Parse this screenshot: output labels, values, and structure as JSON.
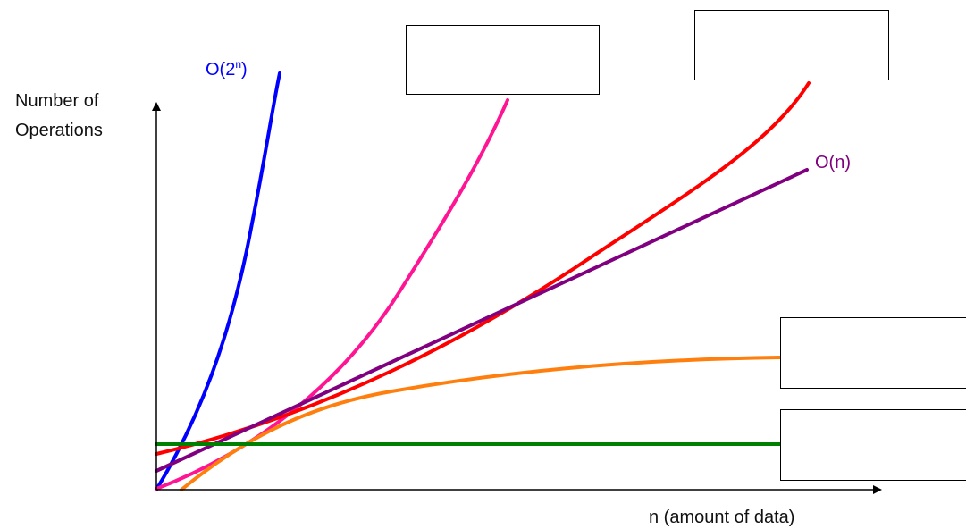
{
  "chart_data": {
    "type": "line",
    "title": "",
    "ylabel": [
      "Number of",
      "Operations"
    ],
    "xlabel": "n  (amount of data)",
    "grid": false,
    "legend": "none; labels placed next to curves",
    "series": [
      {
        "name": "O(2ⁿ)",
        "label_main": "O(2",
        "label_sup": "n",
        "label_close": ")",
        "color": "#0000ff",
        "labeled": true
      },
      {
        "name": "",
        "color": "#ff1493",
        "labeled": false,
        "box": "top-middle"
      },
      {
        "name": "",
        "color": "#ff0000",
        "labeled": false,
        "box": "top-right"
      },
      {
        "name": "O(n)",
        "label_main": "O(n)",
        "label_sup": "",
        "label_close": "",
        "color": "#800080",
        "labeled": true
      },
      {
        "name": "",
        "color": "#ff7f0e",
        "labeled": false,
        "box": "right-upper"
      },
      {
        "name": "",
        "color": "#008000",
        "labeled": false,
        "box": "right-lower"
      }
    ],
    "answer_boxes": [
      "",
      "",
      "",
      ""
    ]
  }
}
